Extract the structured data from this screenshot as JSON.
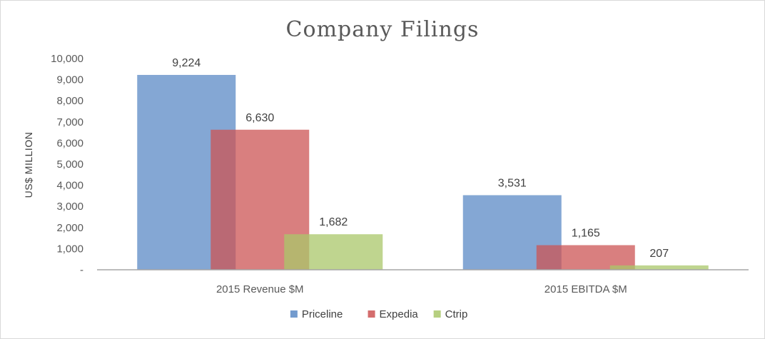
{
  "chart_data": {
    "type": "bar",
    "title": "Company Filings",
    "ylabel": "US$ MILLION",
    "xlabel": "",
    "categories": [
      "2015 Revenue  $M",
      "2015 EBITDA $M"
    ],
    "series": [
      {
        "name": "Priceline",
        "values": [
          9224,
          3531
        ],
        "labels": [
          "9,224",
          "3,531"
        ],
        "color": "#5b8ac6"
      },
      {
        "name": "Expedia",
        "values": [
          6630,
          1165
        ],
        "labels": [
          "6,630",
          "1,165"
        ],
        "color": "#cc5454"
      },
      {
        "name": "Ctrip",
        "values": [
          1682,
          207
        ],
        "labels": [
          "1,682",
          "207"
        ],
        "color": "#a9c76a"
      }
    ],
    "ylim": [
      0,
      10000
    ],
    "yticks": [
      0,
      1000,
      2000,
      3000,
      4000,
      5000,
      6000,
      7000,
      8000,
      9000,
      10000
    ],
    "ytick_labels": [
      "-",
      "1,000",
      "2,000",
      "3,000",
      "4,000",
      "5,000",
      "6,000",
      "7,000",
      "8,000",
      "9,000",
      "10,000"
    ],
    "grid": false,
    "legend_position": "bottom",
    "bar_overlap": true
  }
}
